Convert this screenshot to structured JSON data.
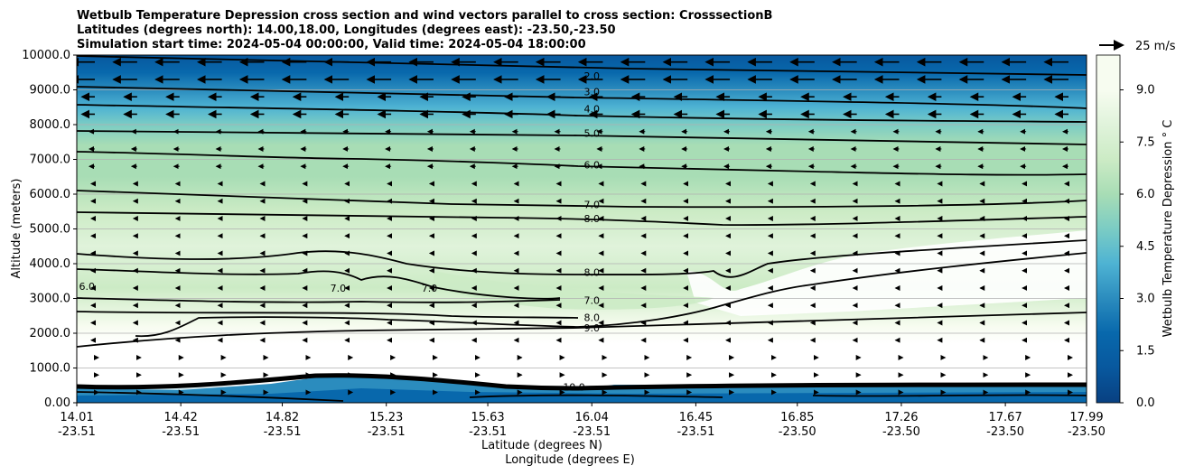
{
  "chart_data": {
    "type": "contour-cross-section",
    "title_lines": [
      "Wetbulb Temperature Depression cross section and wind vectors parallel to cross section: CrosssectionB",
      "Latitudes (degrees north): 14.00,18.00, Longitudes (degrees east): -23.50,-23.50",
      "Simulation start time: 2024-05-04 00:00:00, Valid time: 2024-05-04 18:00:00"
    ],
    "ylabel": "Altitude (meters)",
    "xlabel_lat": "Latitude (degrees N)",
    "xlabel_lon": "Longitude (degrees E)",
    "ylim": [
      0,
      10000
    ],
    "y_ticks": [
      "0.00",
      "1000.0",
      "2000.0",
      "3000.0",
      "4000.0",
      "5000.0",
      "6000.0",
      "7000.0",
      "8000.0",
      "9000.0",
      "10000.0"
    ],
    "x_ticks": [
      {
        "lat": "14.01",
        "lon": "-23.51"
      },
      {
        "lat": "14.42",
        "lon": "-23.51"
      },
      {
        "lat": "14.82",
        "lon": "-23.51"
      },
      {
        "lat": "15.23",
        "lon": "-23.51"
      },
      {
        "lat": "15.63",
        "lon": "-23.51"
      },
      {
        "lat": "16.04",
        "lon": "-23.51"
      },
      {
        "lat": "16.45",
        "lon": "-23.51"
      },
      {
        "lat": "16.85",
        "lon": "-23.50"
      },
      {
        "lat": "17.26",
        "lon": "-23.50"
      },
      {
        "lat": "17.67",
        "lon": "-23.50"
      },
      {
        "lat": "17.99",
        "lon": "-23.50"
      }
    ],
    "colorbar": {
      "label": "Wetbulb Temperature Depression ° C",
      "range": [
        0,
        10
      ],
      "ticks": [
        "0.0",
        "1.5",
        "3.0",
        "4.5",
        "6.0",
        "7.5",
        "9.0"
      ],
      "colors": [
        "#084081",
        "#08589e",
        "#0868ac",
        "#2b8cbe",
        "#4eb3d3",
        "#7bccc4",
        "#a8ddb5",
        "#ccebc5",
        "#e0f3db",
        "#f7fcf0"
      ]
    },
    "quiver_key": "25 m/s",
    "contour_labels": [
      {
        "text": "2.0",
        "lat": 16.04,
        "alt": 9400
      },
      {
        "text": "3.0",
        "lat": 16.04,
        "alt": 8950
      },
      {
        "text": "4.0",
        "lat": 16.04,
        "alt": 8450
      },
      {
        "text": "5.0",
        "lat": 16.04,
        "alt": 7750
      },
      {
        "text": "6.0",
        "lat": 16.04,
        "alt": 6850
      },
      {
        "text": "7.0",
        "lat": 16.04,
        "alt": 5700
      },
      {
        "text": "8.0",
        "lat": 16.04,
        "alt": 5300
      },
      {
        "text": "8.0",
        "lat": 16.04,
        "alt": 3750
      },
      {
        "text": "7.0",
        "lat": 16.04,
        "alt": 2950
      },
      {
        "text": "8.0",
        "lat": 16.04,
        "alt": 2450
      },
      {
        "text": "9.0",
        "lat": 16.04,
        "alt": 2150
      },
      {
        "text": "6.0",
        "lat": 14.05,
        "alt": 3350
      },
      {
        "text": "7.0",
        "lat": 15.04,
        "alt": 3300
      },
      {
        "text": "7.0",
        "lat": 15.4,
        "alt": 3300
      },
      {
        "text": "10.0",
        "lat": 15.97,
        "alt": 450
      }
    ]
  }
}
